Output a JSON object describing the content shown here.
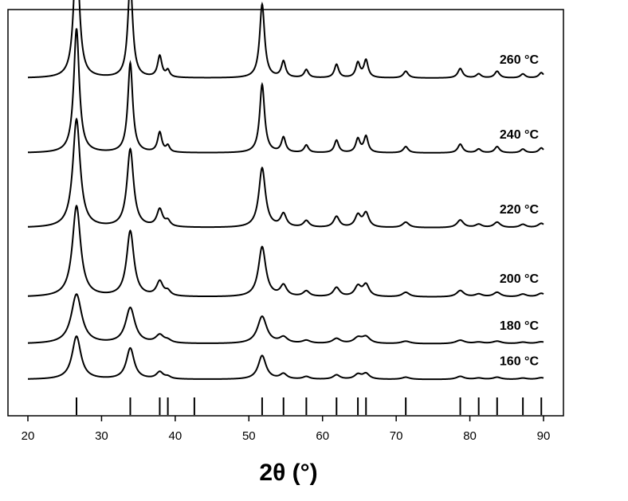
{
  "chart_data": {
    "type": "line",
    "xlabel": "2θ (°)",
    "ylabel": "",
    "xlim": [
      18,
      92
    ],
    "x_ticks": [
      20,
      30,
      40,
      50,
      60,
      70,
      80,
      90
    ],
    "y_ticks_shown": false,
    "grid": false,
    "legend": "none",
    "line_color": "#000000",
    "y_units": "relative intensity (arbitrary, offset per series)",
    "peaks": [
      {
        "x": 26.6,
        "height": 1.0,
        "width": 0.45
      },
      {
        "x": 33.9,
        "height": 0.72,
        "width": 0.4
      },
      {
        "x": 37.9,
        "height": 0.16,
        "width": 0.35
      },
      {
        "x": 39.0,
        "height": 0.05,
        "width": 0.3
      },
      {
        "x": 51.8,
        "height": 0.55,
        "width": 0.4
      },
      {
        "x": 54.7,
        "height": 0.12,
        "width": 0.35
      },
      {
        "x": 57.8,
        "height": 0.06,
        "width": 0.35
      },
      {
        "x": 61.9,
        "height": 0.1,
        "width": 0.35
      },
      {
        "x": 64.8,
        "height": 0.11,
        "width": 0.35
      },
      {
        "x": 65.9,
        "height": 0.13,
        "width": 0.35
      },
      {
        "x": 71.3,
        "height": 0.05,
        "width": 0.4
      },
      {
        "x": 78.7,
        "height": 0.07,
        "width": 0.4
      },
      {
        "x": 81.2,
        "height": 0.03,
        "width": 0.4
      },
      {
        "x": 83.7,
        "height": 0.05,
        "width": 0.4
      },
      {
        "x": 87.2,
        "height": 0.03,
        "width": 0.4
      },
      {
        "x": 89.7,
        "height": 0.04,
        "width": 0.4
      }
    ],
    "series": [
      {
        "name": "260 °C",
        "baseline": 0.855,
        "scale": 0.84,
        "broadening": 1.0
      },
      {
        "name": "240 °C",
        "baseline": 0.655,
        "scale": 0.78,
        "broadening": 1.0
      },
      {
        "name": "220 °C",
        "baseline": 0.455,
        "scale": 0.68,
        "broadening": 1.35
      },
      {
        "name": "200 °C",
        "baseline": 0.27,
        "scale": 0.57,
        "broadening": 1.5
      },
      {
        "name": "180 °C",
        "baseline": 0.145,
        "scale": 0.31,
        "broadening": 1.9
      },
      {
        "name": "160 °C",
        "baseline": 0.05,
        "scale": 0.27,
        "broadening": 1.6
      }
    ],
    "reference_lines": [
      26.6,
      33.9,
      37.9,
      39.0,
      42.6,
      51.8,
      54.7,
      57.8,
      61.9,
      64.8,
      65.9,
      71.3,
      78.7,
      81.2,
      83.7,
      87.2,
      89.7
    ]
  }
}
